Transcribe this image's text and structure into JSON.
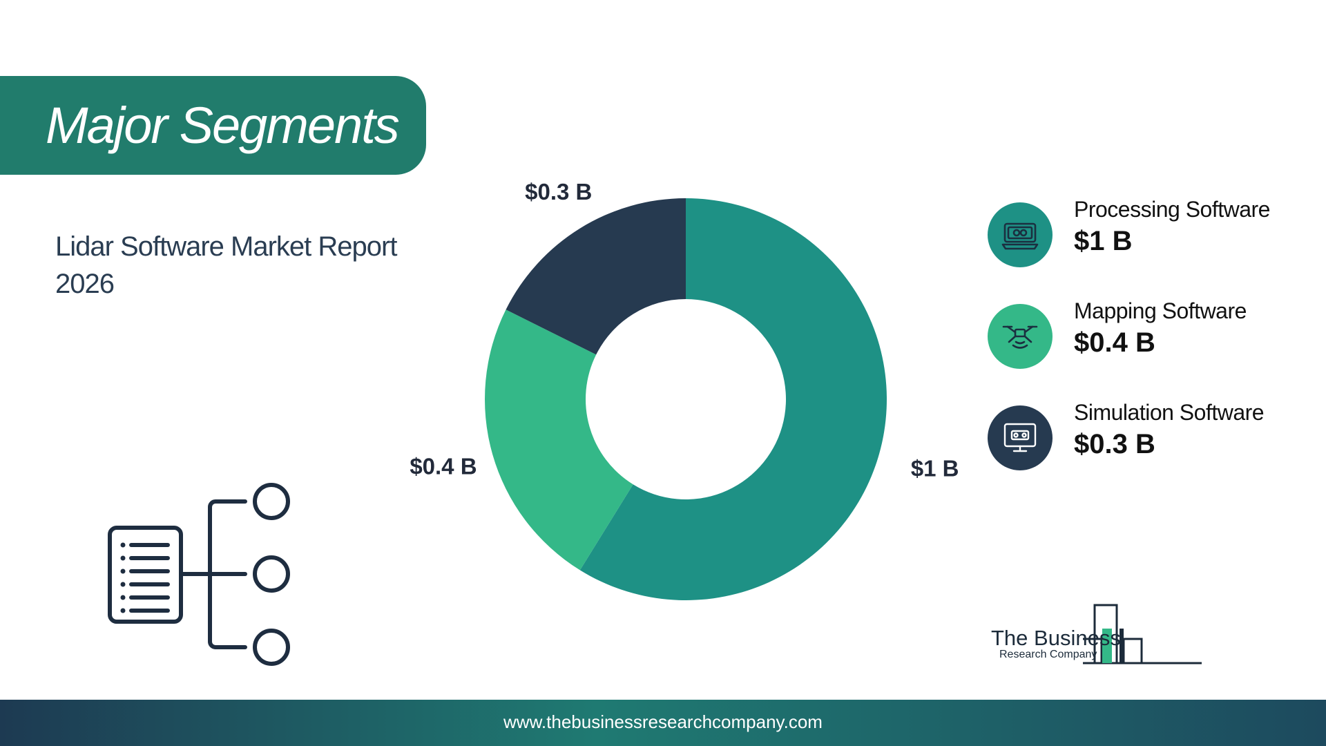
{
  "header": {
    "title": "Major Segments"
  },
  "report": {
    "subtitle": "Lidar Software Market Report 2026"
  },
  "colors": {
    "brand_teal": "#217c6c",
    "slice_1": "#1e9185",
    "slice_2": "#34b888",
    "slice_3": "#263a50"
  },
  "legend": [
    {
      "label": "Processing Software",
      "value": "$1 B",
      "icon": "processing-icon",
      "color": "#1e9185"
    },
    {
      "label": "Mapping Software",
      "value": "$0.4 B",
      "icon": "drone-icon",
      "color": "#34b888"
    },
    {
      "label": "Simulation Software",
      "value": "$0.3 B",
      "icon": "monitor-icon",
      "color": "#263a50"
    }
  ],
  "chart_data": {
    "type": "pie",
    "title": "",
    "categories": [
      "Processing Software",
      "Mapping Software",
      "Simulation Software"
    ],
    "values": [
      1,
      0.4,
      0.3
    ],
    "data_labels": [
      "$1 B",
      "$0.4 B",
      "$0.3 B"
    ],
    "unit": "$ B",
    "donut": true,
    "colors": [
      "#1e9185",
      "#34b888",
      "#263a50"
    ]
  },
  "logo": {
    "line1": "The Business",
    "line2": "Research Company"
  },
  "footer": {
    "url": "www.thebusinessresearchcompany.com"
  }
}
